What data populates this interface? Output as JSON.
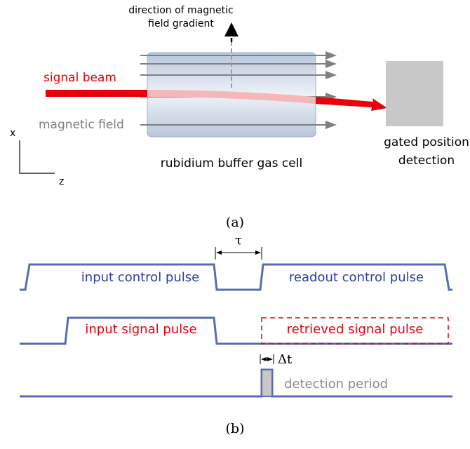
{
  "panel_a": {
    "gradient_label": [
      "direction of magnetic",
      "field gradient"
    ],
    "signal_beam": "signal beam",
    "magnetic_field": "magnetic field",
    "cell_label": "rubidium buffer gas cell",
    "detector_label": [
      "gated position",
      "detection"
    ],
    "axis_x": "x",
    "axis_z": "z",
    "caption": "(a)"
  },
  "panel_b": {
    "input_control": "input control pulse",
    "tau": "τ",
    "readout_control": "readout control pulse",
    "input_signal": "input signal pulse",
    "retrieved_signal": "retrieved signal pulse",
    "delta_t": "Δt",
    "detection_period": "detection period",
    "caption": "(b)"
  }
}
